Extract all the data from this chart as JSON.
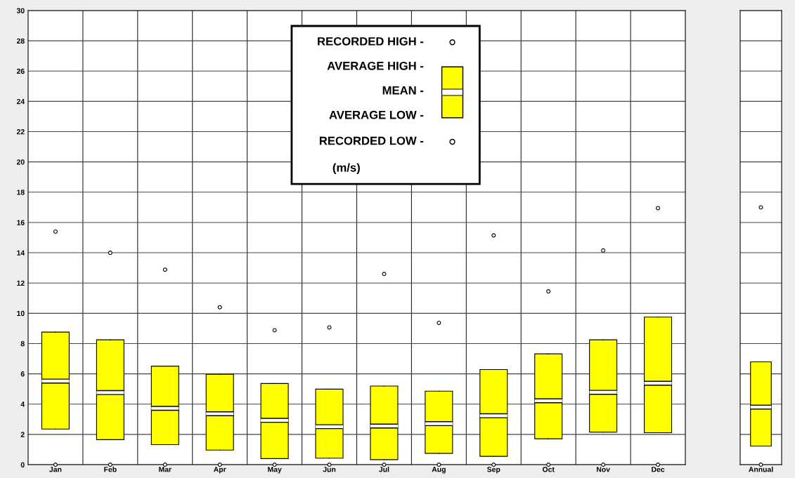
{
  "chart_data": [
    {
      "type": "box",
      "categories": [
        "Jan",
        "Feb",
        "Mar",
        "Apr",
        "May",
        "Jun",
        "Jul",
        "Aug",
        "Sep",
        "Oct",
        "Nov",
        "Dec"
      ],
      "color": "#ffff00",
      "ylim": [
        0,
        30
      ],
      "yticks": [
        0,
        2,
        4,
        6,
        8,
        10,
        12,
        14,
        16,
        18,
        20,
        22,
        24,
        26,
        28,
        30
      ],
      "grid": true,
      "ylabel": "(m/s)",
      "annotations": [
        "RECORDED HIGH -",
        "AVERAGE HIGH -",
        "MEAN -",
        "AVERAGE LOW -",
        "RECORDED LOW -"
      ],
      "boxes": [
        {
          "low": 2.35,
          "q1": 2.35,
          "median": 5.52,
          "q3": 8.76,
          "high": 8.76,
          "outliers": [
            0,
            15.4
          ]
        },
        {
          "low": 1.65,
          "q1": 1.65,
          "median": 4.76,
          "q3": 8.25,
          "high": 8.25,
          "outliers": [
            0,
            14.0
          ]
        },
        {
          "low": 1.32,
          "q1": 1.32,
          "median": 3.72,
          "q3": 6.51,
          "high": 6.51,
          "outliers": [
            0,
            12.88
          ]
        },
        {
          "low": 0.96,
          "q1": 0.96,
          "median": 3.36,
          "q3": 5.97,
          "high": 5.97,
          "outliers": [
            0,
            10.4
          ]
        },
        {
          "low": 0.4,
          "q1": 0.4,
          "median": 2.93,
          "q3": 5.36,
          "high": 5.36,
          "outliers": [
            0,
            8.88
          ]
        },
        {
          "low": 0.43,
          "q1": 0.43,
          "median": 2.51,
          "q3": 4.99,
          "high": 4.99,
          "outliers": [
            0,
            9.07
          ]
        },
        {
          "low": 0.33,
          "q1": 0.33,
          "median": 2.55,
          "q3": 5.19,
          "high": 5.19,
          "outliers": [
            0,
            12.6
          ]
        },
        {
          "low": 0.75,
          "q1": 0.75,
          "median": 2.71,
          "q3": 4.86,
          "high": 4.86,
          "outliers": [
            0,
            9.37
          ]
        },
        {
          "low": 0.55,
          "q1": 0.55,
          "median": 3.23,
          "q3": 6.28,
          "high": 6.28,
          "outliers": [
            0,
            15.15
          ]
        },
        {
          "low": 1.71,
          "q1": 1.71,
          "median": 4.22,
          "q3": 7.32,
          "high": 7.32,
          "outliers": [
            0,
            11.45
          ]
        },
        {
          "low": 2.15,
          "q1": 2.15,
          "median": 4.78,
          "q3": 8.25,
          "high": 8.25,
          "outliers": [
            0,
            14.15
          ]
        },
        {
          "low": 2.11,
          "q1": 2.11,
          "median": 5.38,
          "q3": 9.75,
          "high": 9.75,
          "outliers": [
            0,
            16.95
          ]
        }
      ]
    },
    {
      "type": "box",
      "categories": [
        "Annual"
      ],
      "color": "#ffff00",
      "ylim": [
        0,
        30
      ],
      "tick_labels": "x",
      "grid": "y",
      "boxes": [
        {
          "low": 1.23,
          "q1": 1.23,
          "median": 3.8,
          "q3": 6.79,
          "high": 6.79,
          "outliers": [
            0,
            17.0
          ]
        }
      ]
    }
  ]
}
